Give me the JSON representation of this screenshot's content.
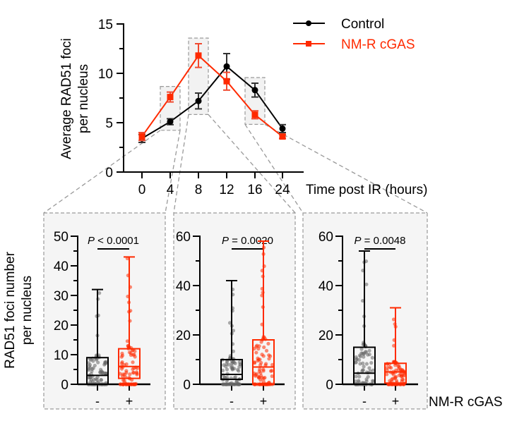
{
  "chart_data": [
    {
      "type": "line",
      "ylabel": [
        "Average RAD51 foci",
        "per nucleus"
      ],
      "xlabel": "Time post IR (hours)",
      "x": [
        0,
        4,
        8,
        12,
        16,
        24
      ],
      "x_tick_labels": [
        "0",
        "4",
        "8",
        "12",
        "16",
        "24"
      ],
      "ylim": [
        0,
        15
      ],
      "y_ticks": [
        0,
        5,
        10,
        15
      ],
      "legend_position": "top-right",
      "highlighted_x": [
        4,
        8,
        16
      ],
      "series": [
        {
          "name": "Control",
          "color": "#000000",
          "marker": "circle",
          "values": [
            3.4,
            5.1,
            7.2,
            10.7,
            8.3,
            4.4
          ],
          "errors": [
            0.4,
            0.3,
            0.8,
            1.3,
            0.7,
            0.4
          ]
        },
        {
          "name": "NM-R cGAS",
          "color": "#ff2a00",
          "marker": "square",
          "values": [
            3.6,
            7.6,
            11.8,
            9.2,
            5.8,
            3.6
          ],
          "errors": [
            0.4,
            0.5,
            1.2,
            0.9,
            0.4,
            0.2
          ]
        }
      ]
    },
    {
      "type": "box",
      "time_point": 4,
      "ylim": [
        0,
        50
      ],
      "y_ticks": [
        0,
        10,
        20,
        30,
        40,
        50
      ],
      "categories": [
        "-",
        "+"
      ],
      "p_label": "P",
      "p_text": " < 0.0001",
      "boxes": [
        {
          "color": "#000000",
          "point_color": "#666666",
          "min": 0,
          "q1": 0,
          "median": 3,
          "q3": 9,
          "max": 32
        },
        {
          "color": "#ff2a00",
          "point_color": "#ff2a00",
          "min": 0,
          "q1": 2,
          "median": 6,
          "q3": 12,
          "max": 43
        }
      ]
    },
    {
      "type": "box",
      "time_point": 8,
      "ylim": [
        0,
        60
      ],
      "y_ticks": [
        0,
        20,
        40,
        60
      ],
      "categories": [
        "-",
        "+"
      ],
      "p_label": "P",
      "p_text": " = 0.0020",
      "boxes": [
        {
          "color": "#000000",
          "point_color": "#666666",
          "min": 0,
          "q1": 2,
          "median": 4,
          "q3": 10,
          "max": 42
        },
        {
          "color": "#ff2a00",
          "point_color": "#ff2a00",
          "min": 0,
          "q1": 0,
          "median": 7,
          "q3": 18,
          "max": 58
        }
      ]
    },
    {
      "type": "box",
      "time_point": 16,
      "ylim": [
        0,
        60
      ],
      "y_ticks": [
        0,
        20,
        40,
        60
      ],
      "categories": [
        "-",
        "+"
      ],
      "p_label": "P",
      "p_text": " = 0.0048",
      "boxes": [
        {
          "color": "#000000",
          "point_color": "#666666",
          "min": 0,
          "q1": 0,
          "median": 4.5,
          "q3": 15,
          "max": 54
        },
        {
          "color": "#ff2a00",
          "point_color": "#ff2a00",
          "min": 0,
          "q1": 0.5,
          "median": 5,
          "q3": 8.5,
          "max": 31
        }
      ]
    }
  ],
  "box_ylabel": [
    "RAD51 foci number",
    "per nucleus"
  ],
  "box_xlabel": "NM-R cGAS"
}
